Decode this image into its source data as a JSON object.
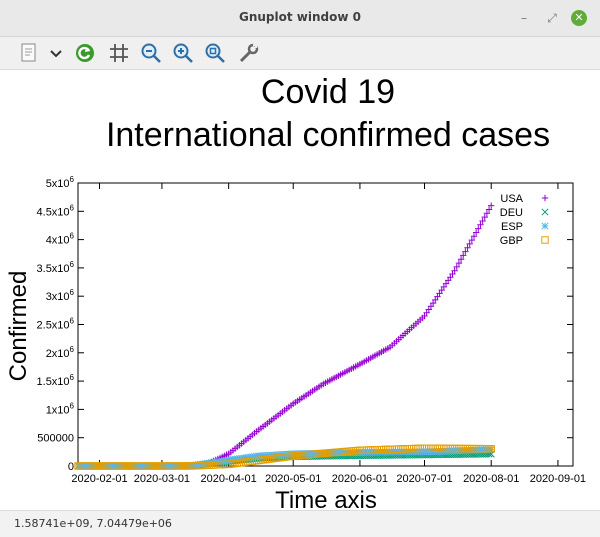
{
  "window": {
    "title": "Gnuplot window 0",
    "min_icon": "minimize-icon",
    "max_icon": "maximize-icon",
    "close_icon": "close-icon"
  },
  "toolbar": {
    "icons": [
      "copy-icon",
      "dropdown-icon",
      "replot-icon",
      "grid-icon",
      "zoom-out-icon",
      "zoom-in-icon",
      "autoscale-icon",
      "settings-icon"
    ]
  },
  "status": {
    "coords": "1.58741e+09,  7.04479e+06"
  },
  "colors": {
    "USA": "#9400d3",
    "DEU": "#009e73",
    "ESP": "#56b4e9",
    "GBP": "#e69f00"
  },
  "chart_data": {
    "type": "scatter",
    "title": [
      "Covid 19",
      "International confirmed cases"
    ],
    "xlabel": "Time axis",
    "ylabel": "Confirmed",
    "xlim": [
      "2020-01-22",
      "2020-09-08"
    ],
    "ylim": [
      0,
      5000000
    ],
    "xticks": [
      "2020-02-01",
      "2020-03-01",
      "2020-04-01",
      "2020-05-01",
      "2020-06-01",
      "2020-07-01",
      "2020-08-01",
      "2020-09-01"
    ],
    "yticks": [
      {
        "v": 0,
        "label": "0"
      },
      {
        "v": 500000,
        "label": "500000"
      },
      {
        "v": 1000000,
        "label": "1x10",
        "sup": "6"
      },
      {
        "v": 1500000,
        "label": "1.5x10",
        "sup": "6"
      },
      {
        "v": 2000000,
        "label": "2x10",
        "sup": "6"
      },
      {
        "v": 2500000,
        "label": "2.5x10",
        "sup": "6"
      },
      {
        "v": 3000000,
        "label": "3x10",
        "sup": "6"
      },
      {
        "v": 3500000,
        "label": "3.5x10",
        "sup": "6"
      },
      {
        "v": 4000000,
        "label": "4x10",
        "sup": "6"
      },
      {
        "v": 4500000,
        "label": "4.5x10",
        "sup": "6"
      },
      {
        "v": 5000000,
        "label": "5x10",
        "sup": "6"
      }
    ],
    "grid": false,
    "legend": "top-right",
    "series": [
      {
        "name": "USA",
        "marker": "plus",
        "points": [
          [
            "2020-01-22",
            0
          ],
          [
            "2020-03-01",
            100
          ],
          [
            "2020-03-15",
            3500
          ],
          [
            "2020-03-22",
            35000
          ],
          [
            "2020-04-01",
            215000
          ],
          [
            "2020-04-15",
            640000
          ],
          [
            "2020-05-01",
            1100000
          ],
          [
            "2020-05-15",
            1450000
          ],
          [
            "2020-06-01",
            1800000
          ],
          [
            "2020-06-15",
            2100000
          ],
          [
            "2020-07-01",
            2650000
          ],
          [
            "2020-07-15",
            3450000
          ],
          [
            "2020-08-01",
            4600000
          ]
        ]
      },
      {
        "name": "DEU",
        "marker": "cross",
        "points": [
          [
            "2020-01-22",
            0
          ],
          [
            "2020-03-01",
            130
          ],
          [
            "2020-03-15",
            5800
          ],
          [
            "2020-04-01",
            77000
          ],
          [
            "2020-04-15",
            134000
          ],
          [
            "2020-05-01",
            164000
          ],
          [
            "2020-06-01",
            183000
          ],
          [
            "2020-07-01",
            195000
          ],
          [
            "2020-08-01",
            211000
          ]
        ]
      },
      {
        "name": "ESP",
        "marker": "star",
        "points": [
          [
            "2020-01-22",
            0
          ],
          [
            "2020-03-01",
            85
          ],
          [
            "2020-03-15",
            7800
          ],
          [
            "2020-04-01",
            104000
          ],
          [
            "2020-04-15",
            178000
          ],
          [
            "2020-05-01",
            215000
          ],
          [
            "2020-06-01",
            240000
          ],
          [
            "2020-07-01",
            250000
          ],
          [
            "2020-08-01",
            290000
          ]
        ]
      },
      {
        "name": "GBP",
        "marker": "square",
        "points": [
          [
            "2020-01-22",
            0
          ],
          [
            "2020-03-01",
            40
          ],
          [
            "2020-03-15",
            1400
          ],
          [
            "2020-04-01",
            30000
          ],
          [
            "2020-04-15",
            99000
          ],
          [
            "2020-05-01",
            178000
          ],
          [
            "2020-06-01",
            277000
          ],
          [
            "2020-07-01",
            314000
          ],
          [
            "2020-08-01",
            305000
          ]
        ]
      }
    ]
  }
}
